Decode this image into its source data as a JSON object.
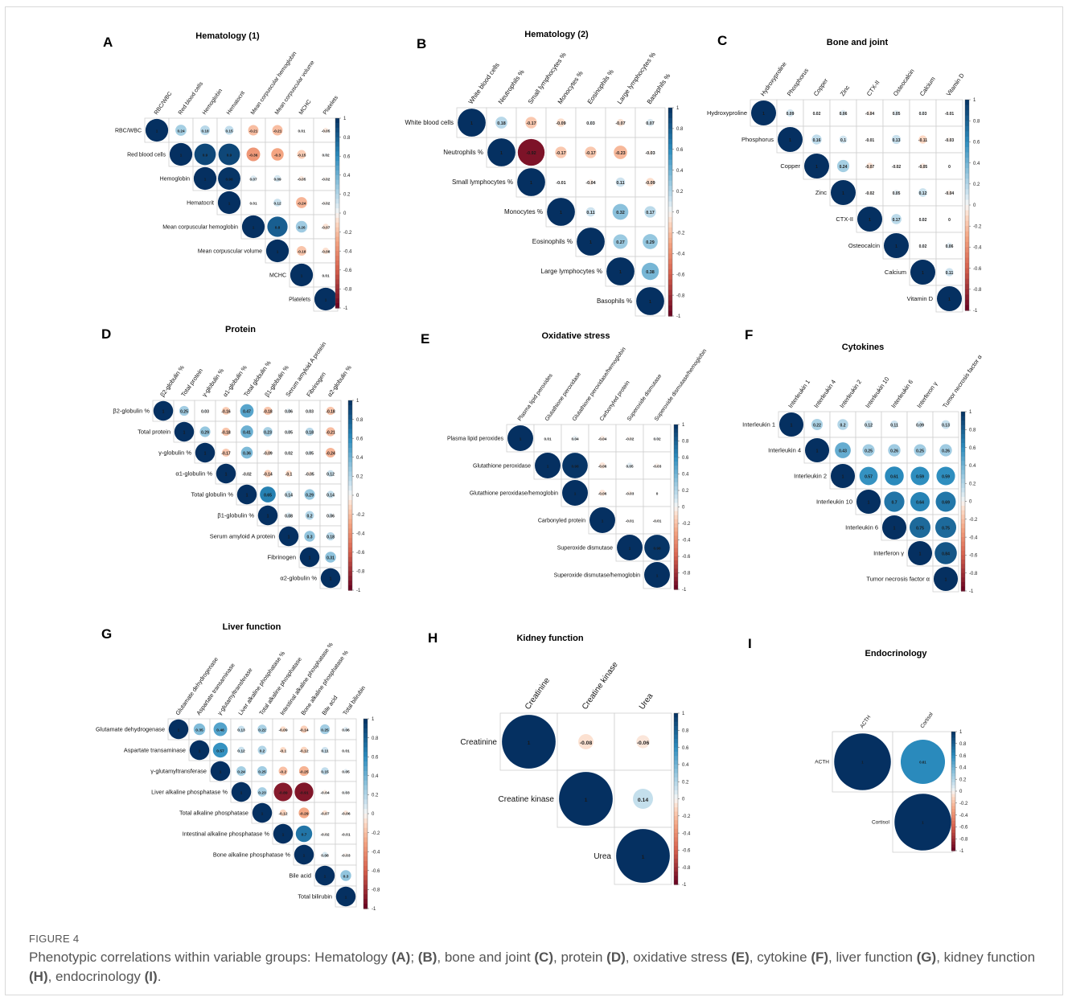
{
  "caption": {
    "label": "FIGURE 4",
    "segments": [
      {
        "t": "Phenotypic correlations within variable groups: Hematology ",
        "b": false
      },
      {
        "t": "(A)",
        "b": true
      },
      {
        "t": "; ",
        "b": false
      },
      {
        "t": "(B)",
        "b": true
      },
      {
        "t": ", bone and joint ",
        "b": false
      },
      {
        "t": "(C)",
        "b": true
      },
      {
        "t": ", protein ",
        "b": false
      },
      {
        "t": "(D)",
        "b": true
      },
      {
        "t": ", oxidative stress ",
        "b": false
      },
      {
        "t": "(E)",
        "b": true
      },
      {
        "t": ", cytokine ",
        "b": false
      },
      {
        "t": "(F)",
        "b": true
      },
      {
        "t": ", liver function ",
        "b": false
      },
      {
        "t": "(G)",
        "b": true
      },
      {
        "t": ", kidney function ",
        "b": false
      },
      {
        "t": "(H)",
        "b": true
      },
      {
        "t": ", endocrinology ",
        "b": false
      },
      {
        "t": "(I)",
        "b": true
      },
      {
        "t": ".",
        "b": false
      }
    ]
  },
  "colors": {
    "strong_positive": "#053061",
    "mid_positive": "#2c7fb8",
    "weak_positive": "#d1e5f0",
    "zero": "#f7f7f7",
    "weak_negative": "#fddbc7",
    "strong_negative": "#67001f",
    "grid": "#d0d0d0"
  },
  "colorbar_ticks": [
    "1",
    "0.8",
    "0.6",
    "0.4",
    "0.2",
    "0",
    "-0.2",
    "-0.4",
    "-0.6",
    "-0.8",
    "-1"
  ],
  "chart_data": [
    {
      "type": "heatmap",
      "letter": "A",
      "title": "Hematology (1)",
      "variables": [
        "RBC/WBC",
        "Red blood cells",
        "Hemoglobin",
        "Hematocrit",
        "Mean corpuscular hemoglobin",
        "Mean corpuscular volume",
        "MCHC",
        "Platelets"
      ],
      "matrix": [
        [
          1,
          0.24,
          0.18,
          0.15,
          -0.21,
          -0.21,
          0.01,
          -0.05
        ],
        [
          null,
          1,
          0.9,
          0.9,
          -0.36,
          -0.3,
          -0.15,
          0.02
        ],
        [
          null,
          null,
          1,
          0.98,
          0.07,
          0.09,
          -0.05,
          -0.02
        ],
        [
          null,
          null,
          null,
          1,
          0.01,
          0.12,
          -0.24,
          -0.02
        ],
        [
          null,
          null,
          null,
          null,
          1,
          0.8,
          0.26,
          -0.07
        ],
        [
          null,
          null,
          null,
          null,
          null,
          1,
          -0.18,
          -0.08
        ],
        [
          null,
          null,
          null,
          null,
          null,
          null,
          1,
          0.01
        ],
        [
          null,
          null,
          null,
          null,
          null,
          null,
          null,
          1
        ]
      ],
      "range": [
        -1,
        1
      ]
    },
    {
      "type": "heatmap",
      "letter": "B",
      "title": "Hematology (2)",
      "variables": [
        "White blood cells",
        "Neutrophils %",
        "Small lymphocytes %",
        "Monocytes %",
        "Eosinophils %",
        "Large lymphocytes %",
        "Basophils %"
      ],
      "matrix": [
        [
          1,
          0.18,
          -0.17,
          -0.09,
          0.03,
          -0.07,
          0.07
        ],
        [
          null,
          1,
          -0.92,
          -0.17,
          -0.17,
          -0.23,
          -0.03
        ],
        [
          null,
          null,
          1,
          -0.01,
          -0.04,
          0.11,
          -0.09
        ],
        [
          null,
          null,
          null,
          1,
          0.11,
          0.32,
          0.17
        ],
        [
          null,
          null,
          null,
          null,
          1,
          0.27,
          0.29
        ],
        [
          null,
          null,
          null,
          null,
          null,
          1,
          0.38
        ],
        [
          null,
          null,
          null,
          null,
          null,
          null,
          1
        ]
      ],
      "range": [
        -1,
        1
      ]
    },
    {
      "type": "heatmap",
      "letter": "C",
      "title": "Bone and joint",
      "variables": [
        "Hydroxyproline",
        "Phosphorus",
        "Copper",
        "Zinc",
        "CTX-II",
        "Osteocalcin",
        "Calcium",
        "Vitamin D"
      ],
      "matrix": [
        [
          1,
          0.09,
          0.02,
          0.06,
          -0.04,
          0.05,
          0.03,
          -0.01
        ],
        [
          null,
          1,
          0.16,
          0.1,
          -0.01,
          0.13,
          -0.11,
          -0.03
        ],
        [
          null,
          null,
          1,
          0.24,
          -0.07,
          -0.02,
          -0.05,
          0
        ],
        [
          null,
          null,
          null,
          1,
          -0.02,
          0.05,
          0.12,
          -0.04
        ],
        [
          null,
          null,
          null,
          null,
          1,
          0.17,
          0.02,
          0
        ],
        [
          null,
          null,
          null,
          null,
          null,
          1,
          0.02,
          0.06
        ],
        [
          null,
          null,
          null,
          null,
          null,
          null,
          1,
          0.11
        ],
        [
          null,
          null,
          null,
          null,
          null,
          null,
          null,
          1
        ]
      ],
      "range": [
        -1,
        1
      ]
    },
    {
      "type": "heatmap",
      "letter": "D",
      "title": "Protein",
      "variables": [
        "β2-globulin %",
        "Total protein",
        "γ-globulin %",
        "α1-globulin %",
        "Total globulin %",
        "β1-globulin %",
        "Serum amyloid A protein",
        "Fibrinogen",
        "α2-globulin %"
      ],
      "matrix": [
        [
          1,
          0.25,
          0.03,
          -0.16,
          0.47,
          -0.18,
          0.06,
          0.03,
          -0.18
        ],
        [
          null,
          1,
          0.29,
          -0.18,
          0.41,
          0.23,
          0.05,
          0.18,
          -0.21
        ],
        [
          null,
          null,
          1,
          -0.17,
          0.36,
          -0.09,
          0.02,
          0.05,
          -0.24
        ],
        [
          null,
          null,
          null,
          1,
          -0.02,
          -0.14,
          -0.1,
          -0.05,
          0.12
        ],
        [
          null,
          null,
          null,
          null,
          1,
          0.65,
          0.14,
          0.29,
          0.14
        ],
        [
          null,
          null,
          null,
          null,
          null,
          1,
          0.08,
          0.2,
          0.06
        ],
        [
          null,
          null,
          null,
          null,
          null,
          null,
          1,
          0.3,
          0.18
        ],
        [
          null,
          null,
          null,
          null,
          null,
          null,
          null,
          1,
          0.31
        ],
        [
          null,
          null,
          null,
          null,
          null,
          null,
          null,
          null,
          1
        ]
      ],
      "range": [
        -1,
        1
      ]
    },
    {
      "type": "heatmap",
      "letter": "E",
      "title": "Oxidative stress",
      "variables": [
        "Plasma lipid peroxides",
        "Glutathione peroxidase",
        "Glutathione peroxidase/hemoglobin",
        "Carbonyled protein",
        "Superoxide dismutase",
        "Superoxide dismutase/hemoglobin"
      ],
      "matrix": [
        [
          1,
          0.01,
          0.04,
          -0.04,
          -0.02,
          0.02
        ],
        [
          null,
          1,
          0.98,
          -0.06,
          0.05,
          -0.03
        ],
        [
          null,
          null,
          1,
          -0.06,
          -0.03,
          0
        ],
        [
          null,
          null,
          null,
          1,
          -0.01,
          -0.01
        ],
        [
          null,
          null,
          null,
          null,
          1,
          0.98
        ],
        [
          null,
          null,
          null,
          null,
          null,
          1
        ]
      ],
      "range": [
        -1,
        1
      ]
    },
    {
      "type": "heatmap",
      "letter": "F",
      "title": "Cytokines",
      "variables": [
        "Interleukin 1",
        "Interleukin 4",
        "Interleukin 2",
        "Interleukin 10",
        "Interleukin 6",
        "Interferon γ",
        "Tumor necrosis factor α"
      ],
      "matrix": [
        [
          1,
          0.22,
          0.2,
          0.12,
          0.11,
          0.09,
          0.13
        ],
        [
          null,
          1,
          0.43,
          0.25,
          0.26,
          0.25,
          0.26
        ],
        [
          null,
          null,
          1,
          0.57,
          0.61,
          0.59,
          0.59
        ],
        [
          null,
          null,
          null,
          1,
          0.7,
          0.64,
          0.69
        ],
        [
          null,
          null,
          null,
          null,
          1,
          0.75,
          0.75
        ],
        [
          null,
          null,
          null,
          null,
          null,
          1,
          0.84
        ],
        [
          null,
          null,
          null,
          null,
          null,
          null,
          1
        ]
      ],
      "range": [
        -1,
        1
      ]
    },
    {
      "type": "heatmap",
      "letter": "G",
      "title": "Liver function",
      "variables": [
        "Glutamate dehydrogenase",
        "Aspartate transaminase",
        "γ-glutamyltransferase",
        "Liver alkaline phosphatase %",
        "Total alkaline phosphatase",
        "Intestinal alkaline phosphatase %",
        "Bone alkaline phosphatase %",
        "Bile acid",
        "Total bilirubin"
      ],
      "matrix": [
        [
          1,
          0.35,
          0.48,
          0.13,
          0.22,
          -0.09,
          -0.14,
          0.25,
          0.06
        ],
        [
          null,
          1,
          0.57,
          0.12,
          0.2,
          -0.1,
          -0.12,
          0.11,
          0.01
        ],
        [
          null,
          null,
          1,
          0.24,
          0.25,
          -0.2,
          -0.25,
          0.15,
          0.05
        ],
        [
          null,
          null,
          null,
          1,
          0.23,
          -0.89,
          -0.91,
          -0.04,
          0.03
        ],
        [
          null,
          null,
          null,
          null,
          1,
          -0.12,
          -0.29,
          -0.07,
          -0.06
        ],
        [
          null,
          null,
          null,
          null,
          null,
          1,
          0.7,
          -0.02,
          -0.01
        ],
        [
          null,
          null,
          null,
          null,
          null,
          null,
          1,
          0.08,
          -0.03
        ],
        [
          null,
          null,
          null,
          null,
          null,
          null,
          null,
          1,
          0.3
        ],
        [
          null,
          null,
          null,
          null,
          null,
          null,
          null,
          null,
          1
        ]
      ],
      "range": [
        -1,
        1
      ]
    },
    {
      "type": "heatmap",
      "letter": "H",
      "title": "Kidney function",
      "variables": [
        "Creatinine",
        "Creatine kinase",
        "Urea"
      ],
      "matrix": [
        [
          1,
          -0.08,
          -0.06
        ],
        [
          null,
          1,
          0.14
        ],
        [
          null,
          null,
          1
        ]
      ],
      "range": [
        -1,
        1
      ]
    },
    {
      "type": "heatmap",
      "letter": "I",
      "title": "Endocrinology",
      "variables": [
        "ACTH",
        "Cortisol"
      ],
      "matrix": [
        [
          1,
          0.61
        ],
        [
          null,
          1
        ]
      ],
      "range": [
        -1,
        1
      ]
    }
  ]
}
